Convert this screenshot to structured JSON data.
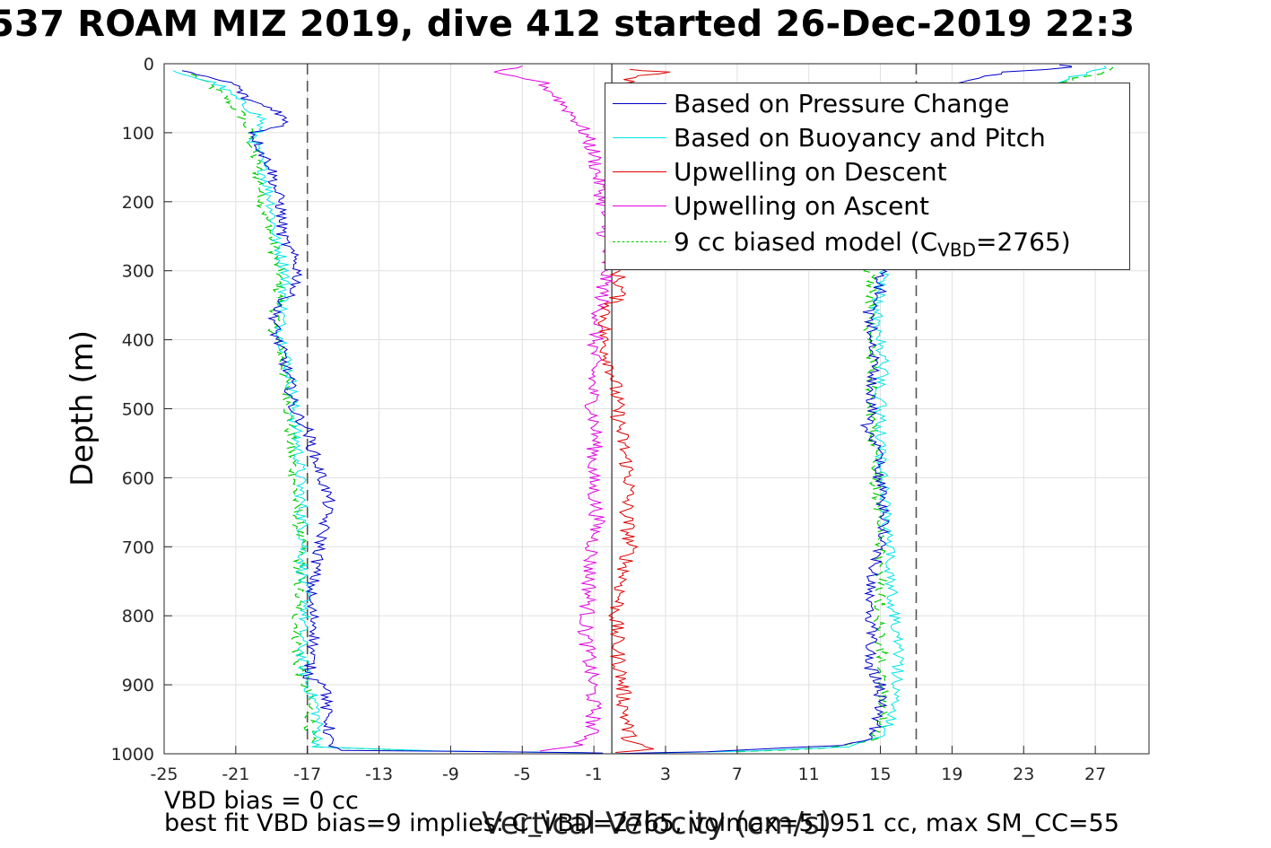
{
  "title": "537 ROAM MIZ 2019, dive 412 started 26-Dec-2019 22:3",
  "notes": {
    "line1": "VBD bias = 0 cc",
    "line2": "best fit VBD bias=9 implies: C_VBD=2765, volmax=51951 cc, max SM_CC=55"
  },
  "legend": {
    "items": [
      {
        "label": "Based on Pressure Change",
        "color": "#0000c8",
        "dash": false
      },
      {
        "label": "Based on Buoyancy and Pitch",
        "color": "#00e5e5",
        "dash": false
      },
      {
        "label": "Upwelling on Descent",
        "color": "#e00000",
        "dash": false
      },
      {
        "label": "Upwelling on Ascent",
        "color": "#e000e0",
        "dash": false
      }
    ],
    "model": {
      "prefix": "9 cc biased model (C",
      "sub": "VBD",
      "suffix": "=2765)",
      "color": "#00cc00"
    }
  },
  "chart_data": {
    "type": "line",
    "title": "537 ROAM MIZ 2019, dive 412 started 26-Dec-2019 22:3",
    "xlabel": "Vertical Velocity (cm/s)",
    "ylabel": "Depth (m)",
    "xlim": [
      -25,
      30
    ],
    "ylim": [
      0,
      1000
    ],
    "y_reversed": true,
    "xticks": [
      -25,
      -21,
      -17,
      -13,
      -9,
      -5,
      -1,
      3,
      7,
      11,
      15,
      19,
      23,
      27
    ],
    "yticks": [
      0,
      100,
      200,
      300,
      400,
      500,
      600,
      700,
      800,
      900,
      1000
    ],
    "grid": true,
    "legend_position": "top-right",
    "reference_lines": {
      "dashed_x": [
        -17,
        17
      ],
      "solid_x": [
        0
      ]
    },
    "colors": {
      "pressure": "#0000c8",
      "buoyancy": "#00e5e5",
      "descent": "#e00000",
      "ascent": "#e000e0",
      "model": "#00cc00",
      "refline": "#555555",
      "grid": "#e0e0e0"
    },
    "series": [
      {
        "name": "Based on Pressure Change",
        "key": "pressure",
        "descent": [
          [
            -24,
            10
          ],
          [
            -21,
            30
          ],
          [
            -20.5,
            50
          ],
          [
            -18.5,
            70
          ],
          [
            -18.2,
            90
          ],
          [
            -20,
            100
          ],
          [
            -19.5,
            130
          ],
          [
            -19,
            150
          ],
          [
            -18.8,
            180
          ],
          [
            -18.5,
            200
          ],
          [
            -18.4,
            250
          ],
          [
            -17.8,
            280
          ],
          [
            -17.5,
            300
          ],
          [
            -17.6,
            320
          ],
          [
            -18.8,
            360
          ],
          [
            -18.8,
            390
          ],
          [
            -18.4,
            420
          ],
          [
            -18,
            460
          ],
          [
            -17.8,
            500
          ],
          [
            -17,
            530
          ],
          [
            -16.7,
            560
          ],
          [
            -16.2,
            600
          ],
          [
            -15.8,
            630
          ],
          [
            -16,
            660
          ],
          [
            -16.3,
            700
          ],
          [
            -16.6,
            740
          ],
          [
            -16.9,
            780
          ],
          [
            -16.5,
            820
          ],
          [
            -16.8,
            860
          ],
          [
            -16.9,
            890
          ],
          [
            -15.8,
            900
          ],
          [
            -16,
            930
          ],
          [
            -15.8,
            960
          ],
          [
            -15.8,
            985
          ],
          [
            -15,
            995
          ],
          [
            -3,
            998
          ],
          [
            -0.5,
            999
          ]
        ],
        "ascent": [
          [
            0,
            1000
          ],
          [
            5,
            997
          ],
          [
            12.5,
            988
          ],
          [
            14.5,
            978
          ],
          [
            14.8,
            955
          ],
          [
            15,
            930
          ],
          [
            15,
            900
          ],
          [
            14.3,
            870
          ],
          [
            14.5,
            840
          ],
          [
            14.5,
            810
          ],
          [
            14.3,
            780
          ],
          [
            14.5,
            740
          ],
          [
            15,
            700
          ],
          [
            15.2,
            660
          ],
          [
            15,
            620
          ],
          [
            14.8,
            560
          ],
          [
            14.2,
            530
          ],
          [
            14.5,
            500
          ],
          [
            14.5,
            460
          ],
          [
            14.7,
            420
          ],
          [
            14.5,
            380
          ],
          [
            14.3,
            360
          ],
          [
            15,
            330
          ],
          [
            14.8,
            310
          ],
          [
            15.5,
            295
          ],
          [
            19,
            30
          ],
          [
            22,
            12
          ],
          [
            26,
            5
          ],
          [
            25,
            2
          ]
        ]
      },
      {
        "name": "Based on Buoyancy and Pitch",
        "key": "buoyancy",
        "descent": [
          [
            -24.5,
            10
          ],
          [
            -22,
            30
          ],
          [
            -21,
            50
          ],
          [
            -19.5,
            80
          ],
          [
            -20,
            110
          ],
          [
            -19.5,
            150
          ],
          [
            -19,
            200
          ],
          [
            -18.8,
            250
          ],
          [
            -18.2,
            300
          ],
          [
            -18.3,
            340
          ],
          [
            -18.5,
            380
          ],
          [
            -18.2,
            420
          ],
          [
            -17.9,
            460
          ],
          [
            -17.7,
            520
          ],
          [
            -17.5,
            560
          ],
          [
            -17.4,
            600
          ],
          [
            -17.3,
            650
          ],
          [
            -17.2,
            700
          ],
          [
            -17.3,
            750
          ],
          [
            -17,
            780
          ],
          [
            -17.3,
            820
          ],
          [
            -17.3,
            860
          ],
          [
            -17,
            900
          ],
          [
            -16.5,
            930
          ],
          [
            -16.4,
            960
          ],
          [
            -16.4,
            990
          ],
          [
            -10,
            996
          ],
          [
            -0.5,
            999
          ]
        ],
        "ascent": [
          [
            0,
            1000
          ],
          [
            8,
            996
          ],
          [
            13,
            990
          ],
          [
            15,
            975
          ],
          [
            15.5,
            955
          ],
          [
            15.8,
            920
          ],
          [
            16,
            880
          ],
          [
            16,
            840
          ],
          [
            15.8,
            800
          ],
          [
            15.6,
            760
          ],
          [
            15.5,
            720
          ],
          [
            15.4,
            680
          ],
          [
            15.3,
            640
          ],
          [
            15.1,
            600
          ],
          [
            15,
            560
          ],
          [
            15,
            520
          ],
          [
            15,
            480
          ],
          [
            15.2,
            440
          ],
          [
            15,
            400
          ],
          [
            14.8,
            360
          ],
          [
            15,
            320
          ],
          [
            15.2,
            300
          ],
          [
            23,
            40
          ],
          [
            27,
            10
          ],
          [
            27.5,
            3
          ]
        ]
      },
      {
        "name": "Upwelling on Descent",
        "key": "descent",
        "descent": [
          [
            1,
            8
          ],
          [
            3,
            12
          ],
          [
            1.2,
            20
          ],
          [
            0.3,
            40
          ],
          [
            0.2,
            80
          ],
          [
            0.3,
            300
          ],
          [
            0.5,
            330
          ],
          [
            -0.3,
            360
          ],
          [
            -0.5,
            400
          ],
          [
            0.1,
            450
          ],
          [
            0.3,
            500
          ],
          [
            0.6,
            550
          ],
          [
            1,
            600
          ],
          [
            0.8,
            650
          ],
          [
            1,
            700
          ],
          [
            0.6,
            750
          ],
          [
            0.2,
            800
          ],
          [
            0.3,
            850
          ],
          [
            0.6,
            900
          ],
          [
            0.8,
            950
          ],
          [
            1,
            980
          ],
          [
            2,
            993
          ],
          [
            0.2,
            998
          ]
        ]
      },
      {
        "name": "Upwelling on Ascent",
        "key": "ascent",
        "ascent": [
          [
            -5,
            3
          ],
          [
            -7,
            12
          ],
          [
            -4,
            25
          ],
          [
            -3,
            50
          ],
          [
            -2,
            80
          ],
          [
            -1.5,
            100
          ],
          [
            -1,
            130
          ],
          [
            -0.8,
            160
          ],
          [
            -0.5,
            200
          ],
          [
            -0.3,
            300
          ],
          [
            -0.8,
            380
          ],
          [
            -1,
            420
          ],
          [
            -1.1,
            480
          ],
          [
            -0.9,
            540
          ],
          [
            -1.1,
            600
          ],
          [
            -0.8,
            660
          ],
          [
            -1.2,
            720
          ],
          [
            -1.3,
            780
          ],
          [
            -1.5,
            820
          ],
          [
            -1.3,
            860
          ],
          [
            -1.1,
            900
          ],
          [
            -1,
            940
          ],
          [
            -1.2,
            975
          ],
          [
            -2,
            990
          ],
          [
            -4,
            996
          ]
        ]
      },
      {
        "name": "9 cc biased model (CVBD=2765)",
        "key": "model",
        "descent": [
          [
            -23.5,
            15
          ],
          [
            -22.5,
            30
          ],
          [
            -21.5,
            50
          ],
          [
            -20.5,
            80
          ],
          [
            -20.2,
            110
          ],
          [
            -19.8,
            150
          ],
          [
            -19.5,
            200
          ],
          [
            -19,
            250
          ],
          [
            -18.6,
            300
          ],
          [
            -18.6,
            340
          ],
          [
            -18.9,
            380
          ],
          [
            -18.5,
            420
          ],
          [
            -18.1,
            470
          ],
          [
            -18,
            520
          ],
          [
            -17.9,
            560
          ],
          [
            -17.7,
            600
          ],
          [
            -17.6,
            650
          ],
          [
            -17.4,
            700
          ],
          [
            -17.5,
            760
          ],
          [
            -17.6,
            820
          ],
          [
            -17.5,
            870
          ],
          [
            -17,
            910
          ],
          [
            -16.8,
            950
          ],
          [
            -16.9,
            990
          ],
          [
            -10,
            996
          ]
        ],
        "ascent": [
          [
            7,
            997
          ],
          [
            12,
            992
          ],
          [
            14.6,
            980
          ],
          [
            15,
            960
          ],
          [
            15.1,
            930
          ],
          [
            15.2,
            900
          ],
          [
            15.1,
            860
          ],
          [
            15,
            820
          ],
          [
            15,
            780
          ],
          [
            15,
            740
          ],
          [
            15,
            700
          ],
          [
            14.9,
            660
          ],
          [
            14.8,
            620
          ],
          [
            14.7,
            580
          ],
          [
            14.6,
            540
          ],
          [
            14.5,
            500
          ],
          [
            14.6,
            460
          ],
          [
            14.5,
            420
          ],
          [
            14.4,
            380
          ],
          [
            14.5,
            340
          ],
          [
            14.4,
            300
          ],
          [
            22,
            45
          ],
          [
            27,
            15
          ],
          [
            28,
            5
          ]
        ]
      }
    ]
  }
}
